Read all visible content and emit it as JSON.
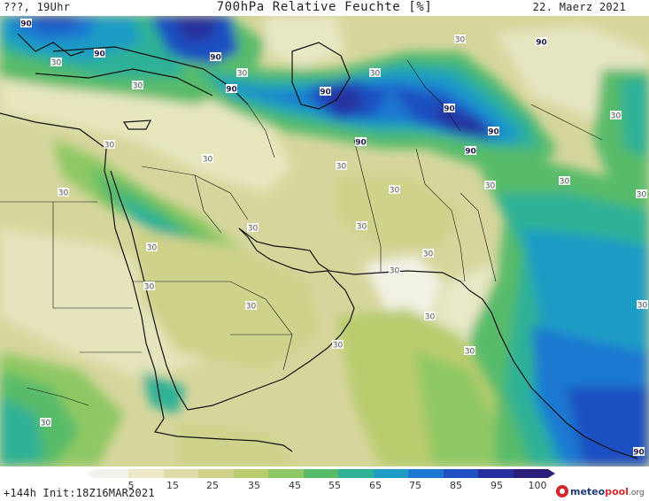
{
  "header": {
    "left": "???, 19Uhr",
    "title": "700hPa Relative Feuchte [%]",
    "date": "22. Maerz 2021"
  },
  "footer": {
    "init": "+144h  Init:18Z16MAR2021",
    "logo": {
      "brand1": "meteo",
      "brand2": "pool",
      "suffix": ".org"
    }
  },
  "colorbar": {
    "ticks": [
      "5",
      "15",
      "25",
      "35",
      "45",
      "55",
      "65",
      "75",
      "85",
      "95",
      "100"
    ],
    "colors": [
      "#f3f3ee",
      "#ece9c8",
      "#dedcaa",
      "#cfd28a",
      "#b8cc6e",
      "#8ec864",
      "#58bb6a",
      "#2fb196",
      "#1f9cc4",
      "#1c78d0",
      "#1f4fc1",
      "#25309e",
      "#2a1f7a"
    ]
  },
  "contour_labels": [
    {
      "text": "90"
    },
    {
      "text": "90"
    },
    {
      "text": "90"
    },
    {
      "text": "90"
    },
    {
      "text": "90"
    },
    {
      "text": "90"
    },
    {
      "text": "90"
    },
    {
      "text": "90"
    },
    {
      "text": "90"
    },
    {
      "text": "90"
    },
    {
      "text": "90"
    },
    {
      "text": "30"
    },
    {
      "text": "30"
    },
    {
      "text": "30"
    },
    {
      "text": "30"
    },
    {
      "text": "30"
    },
    {
      "text": "30"
    },
    {
      "text": "30"
    },
    {
      "text": "30"
    },
    {
      "text": "30"
    },
    {
      "text": "30"
    },
    {
      "text": "30"
    },
    {
      "text": "30"
    },
    {
      "text": "30"
    },
    {
      "text": "30"
    },
    {
      "text": "30"
    },
    {
      "text": "30"
    },
    {
      "text": "30"
    },
    {
      "text": "30"
    },
    {
      "text": "30"
    },
    {
      "text": "30"
    },
    {
      "text": "30"
    },
    {
      "text": "30"
    },
    {
      "text": "30"
    },
    {
      "text": "30"
    },
    {
      "text": "30"
    },
    {
      "text": "30"
    }
  ]
}
